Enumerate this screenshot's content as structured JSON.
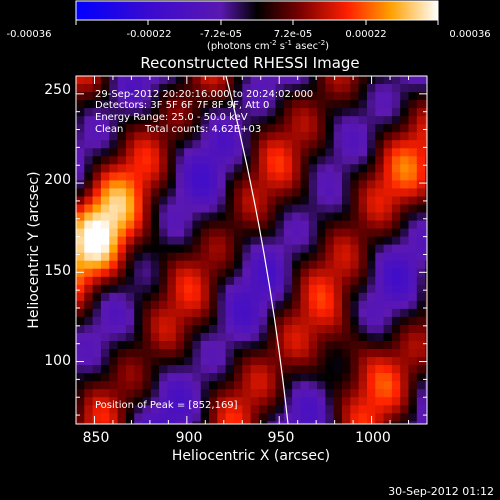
{
  "chart_data": {
    "type": "heatmap",
    "title": "Reconstructed RHESSI Image",
    "xlabel": "Heliocentric X (arcsec)",
    "ylabel": "Heliocentric Y (arcsec)",
    "xlim": [
      840,
      1030
    ],
    "ylim": [
      65,
      260
    ],
    "xticks": [
      850,
      900,
      950,
      1000
    ],
    "yticks": [
      100,
      150,
      200,
      250
    ],
    "colorbar": {
      "ticks": [
        "-0.00036",
        "-0.00022",
        "-7.2e-05",
        "7.2e-05",
        "0.00022",
        "0.00036"
      ],
      "units_text": "(photons cm",
      "units_exp1": "-2",
      "units_mid": " s",
      "units_exp2": "-1",
      "units_tail": " asec",
      "units_exp3": "-2",
      "units_close": ")",
      "range": [
        -0.00036,
        0.00036
      ]
    },
    "annotations": {
      "time": "29-Sep-2012 20:20:16.000 to 20:24:02.000",
      "detectors": "Detectors: 3F 5F 6F 7F 8F 9F, Att 0",
      "energy": "Energy Range: 25.0 - 50.0 keV",
      "clean": "Clean",
      "counts": "Total counts: 4.62E+03",
      "peak": "Position of Peak = [852,169]"
    },
    "peak_position": [
      852,
      169
    ],
    "limb_line": true
  },
  "footer": {
    "timestamp": "30-Sep-2012 01:12"
  }
}
